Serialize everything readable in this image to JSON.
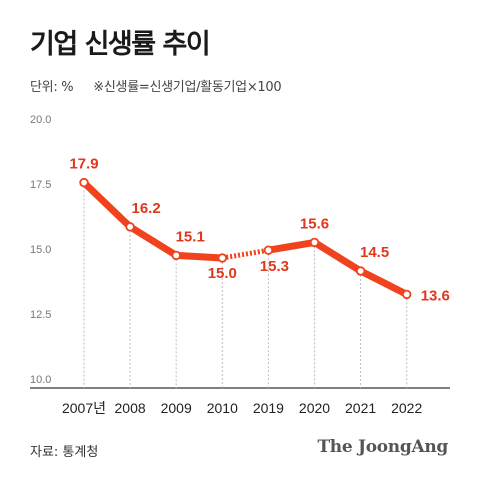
{
  "title": "기업 신생률 추이",
  "unit_label": "단위: %",
  "formula_note": "※신생률=신생기업/활동기업×100",
  "source": "자료: 통계청",
  "brand": "The JoongAng",
  "colors": {
    "line": "#f0421c",
    "label": "#e0381c",
    "grid": "#bdbdbd",
    "axis": "#333333"
  },
  "chart_data": {
    "type": "line",
    "categories": [
      "2007년",
      "2008",
      "2009",
      "2010",
      "2019",
      "2020",
      "2021",
      "2022"
    ],
    "values": [
      17.9,
      16.2,
      15.1,
      15.0,
      15.3,
      15.6,
      14.5,
      13.6
    ],
    "value_labels": [
      "17.9",
      "16.2",
      "15.1",
      "15.0",
      "15.3",
      "15.6",
      "14.5",
      "13.6"
    ],
    "dotted_segment": [
      3,
      4
    ],
    "ylim": [
      10.0,
      20.0
    ],
    "yticks": [
      "20.0",
      "17.5",
      "15.0",
      "12.5",
      "10.0"
    ],
    "grid": "vertical dotted",
    "xlabel": "",
    "ylabel": ""
  }
}
